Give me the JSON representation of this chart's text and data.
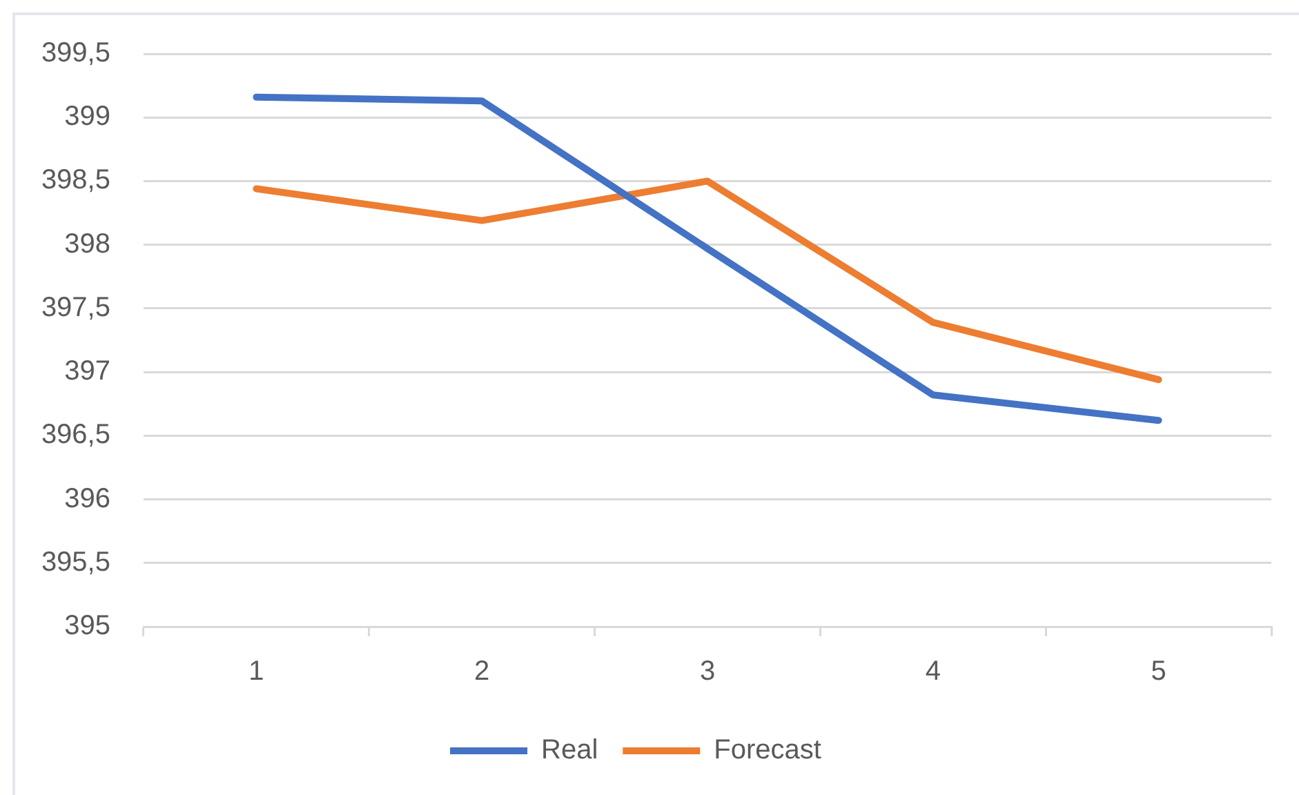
{
  "chart_data": {
    "type": "line",
    "categories": [
      "1",
      "2",
      "3",
      "4",
      "5"
    ],
    "series": [
      {
        "name": "Real",
        "color": "#4472c4",
        "values": [
          399.16,
          399.13,
          397.97,
          396.82,
          396.62
        ]
      },
      {
        "name": "Forecast",
        "color": "#ed7d31",
        "values": [
          398.44,
          398.19,
          398.5,
          397.39,
          396.94
        ]
      }
    ],
    "ylim": [
      395,
      399.5
    ],
    "yticks": [
      395,
      {
        "value": 395.5,
        "label": "395,5"
      },
      396,
      {
        "value": 396.5,
        "label": "396,5"
      },
      397,
      {
        "value": 397.5,
        "label": "397,5"
      },
      398,
      {
        "value": 398.5,
        "label": "398,5"
      },
      399,
      {
        "value": 399.5,
        "label": "399,5"
      }
    ],
    "grid": "y",
    "legend": "bottom"
  }
}
